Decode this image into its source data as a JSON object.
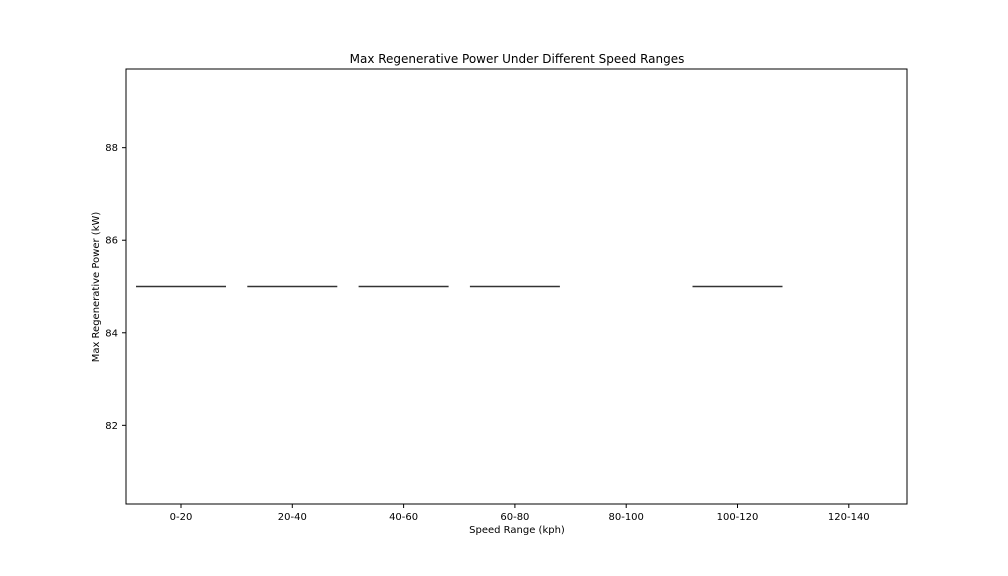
{
  "chart_data": {
    "type": "box",
    "title": "Max Regenerative Power Under Different Speed Ranges",
    "xlabel": "Speed Range (kph)",
    "ylabel": "Max Regenerative Power (kW)",
    "categories": [
      "0-20",
      "20-40",
      "40-60",
      "60-80",
      "80-100",
      "100-120",
      "120-140"
    ],
    "values": [
      85,
      85,
      85,
      85,
      null,
      85,
      null
    ],
    "ylim": [
      80.3,
      89.7
    ],
    "yticks": [
      82,
      84,
      86,
      88
    ],
    "grid": false,
    "legend": "none"
  }
}
